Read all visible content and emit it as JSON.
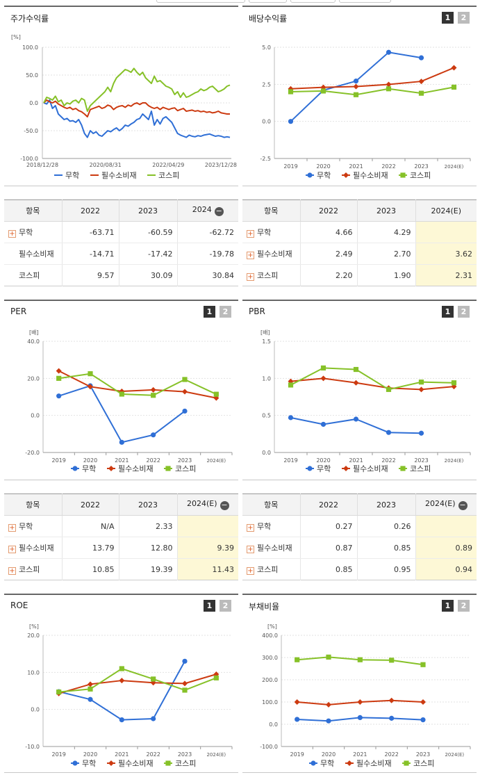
{
  "cards": {
    "returns": {
      "title": "주가수익률"
    },
    "dividend": {
      "title": "배당수익률"
    },
    "per": {
      "title": "PER"
    },
    "pbr": {
      "title": "PBR"
    },
    "roe": {
      "title": "ROE"
    },
    "debt": {
      "title": "부채비율"
    }
  },
  "pager": {
    "page1": "1",
    "page2": "2"
  },
  "legend": {
    "s1": "무학",
    "s2": "필수소비재",
    "s3": "코스피"
  },
  "colors": {
    "s1": "#2f6fd6",
    "s2": "#cc3a10",
    "s3": "#86c128"
  },
  "chart_data": [
    {
      "id": "returns",
      "type": "line",
      "title": "주가수익률",
      "unit": "[%]",
      "ylim": [
        -100,
        100
      ],
      "yticks": [
        "100.0",
        "50.0",
        "0.0",
        "-50.0",
        "-100.0"
      ],
      "xticks": [
        "2018/12/28",
        "2020/08/31",
        "2022/04/29",
        "2023/12/28"
      ],
      "series": [
        {
          "name": "무학",
          "values": [
            0,
            -2,
            5,
            -10,
            -5,
            -20,
            -25,
            -30,
            -28,
            -33,
            -32,
            -35,
            -30,
            -40,
            -55,
            -62,
            -50,
            -55,
            -52,
            -58,
            -60,
            -55,
            -50,
            -52,
            -48,
            -45,
            -50,
            -46,
            -40,
            -42,
            -38,
            -35,
            -30,
            -28,
            -20,
            -25,
            -30,
            -15,
            -40,
            -30,
            -38,
            -28,
            -25,
            -30,
            -35,
            -45,
            -55,
            -58,
            -60,
            -62,
            -58,
            -60,
            -61,
            -59,
            -60,
            -58,
            -57,
            -56,
            -58,
            -60,
            -59,
            -60,
            -62,
            -61,
            -62
          ]
        },
        {
          "name": "필수소비재",
          "values": [
            0,
            5,
            2,
            0,
            3,
            -2,
            -5,
            -8,
            -10,
            -8,
            -12,
            -10,
            -14,
            -16,
            -20,
            -25,
            -12,
            -10,
            -8,
            -6,
            -10,
            -8,
            -4,
            -6,
            -12,
            -8,
            -6,
            -5,
            -8,
            -4,
            -6,
            -2,
            0,
            -3,
            0,
            0,
            -5,
            -8,
            -10,
            -8,
            -12,
            -8,
            -10,
            -12,
            -10,
            -9,
            -14,
            -12,
            -10,
            -15,
            -14,
            -13,
            -15,
            -14,
            -16,
            -15,
            -17,
            -16,
            -18,
            -17,
            -15,
            -18,
            -19,
            -20,
            -20
          ]
        },
        {
          "name": "코스피",
          "values": [
            0,
            10,
            8,
            5,
            12,
            2,
            5,
            -5,
            0,
            -2,
            3,
            5,
            0,
            8,
            5,
            -15,
            -5,
            0,
            5,
            10,
            15,
            20,
            28,
            20,
            35,
            45,
            50,
            55,
            60,
            58,
            55,
            62,
            55,
            50,
            55,
            45,
            40,
            35,
            48,
            38,
            40,
            35,
            30,
            28,
            25,
            15,
            20,
            10,
            18,
            10,
            12,
            15,
            18,
            20,
            25,
            22,
            24,
            28,
            30,
            25,
            20,
            22,
            25,
            30,
            32
          ]
        }
      ]
    },
    {
      "id": "dividend",
      "type": "line",
      "title": "배당수익률",
      "ylim": [
        -2.5,
        5.0
      ],
      "yticks": [
        "5.0",
        "2.5",
        "0.0",
        "-2.5"
      ],
      "categories": [
        "2019",
        "2020",
        "2021",
        "2022",
        "2023",
        "2024(E)"
      ],
      "series": [
        {
          "name": "무학",
          "values": [
            0.0,
            2.1,
            2.72,
            4.66,
            4.29,
            null
          ]
        },
        {
          "name": "필수소비재",
          "values": [
            2.2,
            2.3,
            2.35,
            2.49,
            2.7,
            3.62
          ]
        },
        {
          "name": "코스피",
          "values": [
            2.0,
            2.05,
            1.8,
            2.2,
            1.9,
            2.31
          ]
        }
      ]
    },
    {
      "id": "per",
      "type": "line",
      "title": "PER",
      "unit": "[배]",
      "ylim": [
        -20,
        40
      ],
      "yticks": [
        "40.0",
        "20.0",
        "0.0",
        "-20.0"
      ],
      "categories": [
        "2019",
        "2020",
        "2021",
        "2022",
        "2023",
        "2024(E)"
      ],
      "series": [
        {
          "name": "무학",
          "values": [
            10.5,
            16.0,
            -14.5,
            -10.5,
            2.33,
            null
          ]
        },
        {
          "name": "필수소비재",
          "values": [
            24.0,
            15.5,
            13.0,
            13.79,
            12.8,
            9.39
          ]
        },
        {
          "name": "코스피",
          "values": [
            20.0,
            22.5,
            11.5,
            10.85,
            19.39,
            11.43
          ]
        }
      ]
    },
    {
      "id": "pbr",
      "type": "line",
      "title": "PBR",
      "unit": "[배]",
      "ylim": [
        0.0,
        1.5
      ],
      "yticks": [
        "1.5",
        "1.0",
        "0.5",
        "0.0"
      ],
      "categories": [
        "2019",
        "2020",
        "2021",
        "2022",
        "2023",
        "2024(E)"
      ],
      "series": [
        {
          "name": "무학",
          "values": [
            0.47,
            0.38,
            0.45,
            0.27,
            0.26,
            null
          ]
        },
        {
          "name": "필수소비재",
          "values": [
            0.96,
            1.0,
            0.94,
            0.87,
            0.85,
            0.89
          ]
        },
        {
          "name": "코스피",
          "values": [
            0.91,
            1.14,
            1.12,
            0.85,
            0.95,
            0.94
          ]
        }
      ]
    },
    {
      "id": "roe",
      "type": "line",
      "title": "ROE",
      "unit": "[%]",
      "ylim": [
        -10,
        20
      ],
      "yticks": [
        "20.0",
        "10.0",
        "0.0",
        "-10.0"
      ],
      "categories": [
        "2019",
        "2020",
        "2021",
        "2022",
        "2023",
        "2024(E)"
      ],
      "series": [
        {
          "name": "무학",
          "values": [
            4.8,
            2.7,
            -2.8,
            -2.5,
            13.0,
            null
          ]
        },
        {
          "name": "필수소비재",
          "values": [
            4.3,
            6.8,
            7.8,
            7.2,
            7.0,
            9.5
          ]
        },
        {
          "name": "코스피",
          "values": [
            4.7,
            5.5,
            11.0,
            8.2,
            5.2,
            8.5
          ]
        }
      ]
    },
    {
      "id": "debt",
      "type": "line",
      "title": "부채비율",
      "unit": "[%]",
      "ylim": [
        -100,
        400
      ],
      "yticks": [
        "400.0",
        "300.0",
        "200.0",
        "100.0",
        "0.0",
        "-100.0"
      ],
      "categories": [
        "2019",
        "2020",
        "2021",
        "2022",
        "2023",
        "2024(E)"
      ],
      "series": [
        {
          "name": "무학",
          "values": [
            22,
            15,
            30,
            27,
            20,
            null
          ]
        },
        {
          "name": "필수소비재",
          "values": [
            100,
            88,
            100,
            107,
            100,
            null
          ]
        },
        {
          "name": "코스피",
          "values": [
            290,
            302,
            290,
            288,
            268,
            null
          ]
        }
      ]
    }
  ],
  "tables": {
    "returns": {
      "header": [
        "항목",
        "2022",
        "2023",
        "2024"
      ],
      "rows": [
        {
          "label": "무학",
          "expand": true,
          "values": [
            "-63.71",
            "-60.59",
            "-62.72"
          ]
        },
        {
          "label": "필수소비재",
          "expand": false,
          "values": [
            "-14.71",
            "-17.42",
            "-19.78"
          ]
        },
        {
          "label": "코스피",
          "expand": false,
          "values": [
            "9.57",
            "30.09",
            "30.84"
          ]
        }
      ]
    },
    "dividend": {
      "header": [
        "항목",
        "2022",
        "2023",
        "2024(E)"
      ],
      "rows": [
        {
          "label": "무학",
          "expand": true,
          "values": [
            "4.66",
            "4.29",
            ""
          ]
        },
        {
          "label": "필수소비재",
          "expand": true,
          "values": [
            "2.49",
            "2.70",
            "3.62"
          ]
        },
        {
          "label": "코스피",
          "expand": true,
          "values": [
            "2.20",
            "1.90",
            "2.31"
          ]
        }
      ]
    },
    "per": {
      "header": [
        "항목",
        "2022",
        "2023",
        "2024(E)"
      ],
      "rows": [
        {
          "label": "무학",
          "expand": true,
          "values": [
            "N/A",
            "2.33",
            ""
          ]
        },
        {
          "label": "필수소비재",
          "expand": true,
          "values": [
            "13.79",
            "12.80",
            "9.39"
          ]
        },
        {
          "label": "코스피",
          "expand": true,
          "values": [
            "10.85",
            "19.39",
            "11.43"
          ]
        }
      ]
    },
    "pbr": {
      "header": [
        "항목",
        "2022",
        "2023",
        "2024(E)"
      ],
      "rows": [
        {
          "label": "무학",
          "expand": true,
          "values": [
            "0.27",
            "0.26",
            ""
          ]
        },
        {
          "label": "필수소비재",
          "expand": true,
          "values": [
            "0.87",
            "0.85",
            "0.89"
          ]
        },
        {
          "label": "코스피",
          "expand": true,
          "values": [
            "0.85",
            "0.95",
            "0.94"
          ]
        }
      ]
    }
  }
}
